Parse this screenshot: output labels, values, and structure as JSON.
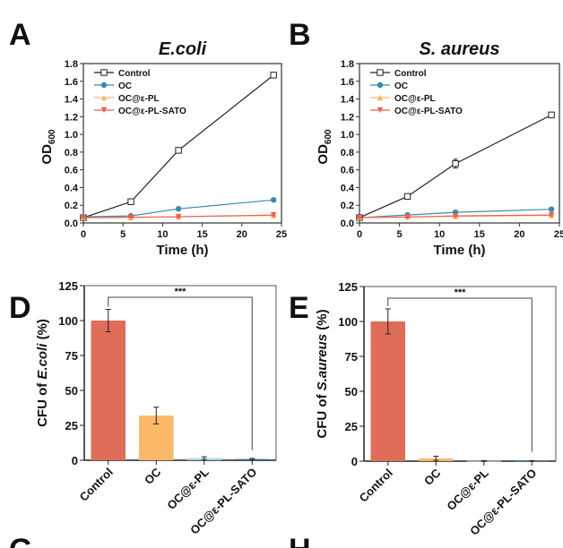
{
  "panel_labels": [
    "A",
    "B",
    "D",
    "E",
    "G",
    "H"
  ],
  "chart_data": [
    {
      "panel": "A",
      "type": "line",
      "title": "E.coli",
      "xlabel": "Time (h)",
      "ylabel": "OD",
      "ylabel_sub": "600",
      "xlim": [
        0,
        25
      ],
      "ylim": [
        0,
        1.8
      ],
      "xticks": [
        0,
        5,
        10,
        15,
        20,
        25
      ],
      "yticks": [
        0.0,
        0.2,
        0.4,
        0.6,
        0.8,
        1.0,
        1.2,
        1.4,
        1.6,
        1.8
      ],
      "legend": "top-left",
      "grid": false,
      "x": [
        0,
        6,
        12,
        24
      ],
      "series": [
        {
          "name": "Control",
          "color": "#222222",
          "marker": "open-square",
          "values": [
            0.06,
            0.24,
            0.82,
            1.67
          ],
          "errors": [
            0.01,
            0.03,
            0.02,
            0.01
          ]
        },
        {
          "name": "OC",
          "color": "#3b8aa8",
          "marker": "circle",
          "values": [
            0.07,
            0.08,
            0.16,
            0.26
          ],
          "errors": [
            0.01,
            0.01,
            0.01,
            0.015
          ]
        },
        {
          "name": "OC@ε-PL",
          "color": "#fdb86a",
          "marker": "triangle-up",
          "values": [
            0.06,
            0.06,
            0.07,
            0.085
          ],
          "errors": [
            0.005,
            0.005,
            0.005,
            0.005
          ]
        },
        {
          "name": "OC@ε-PL-SATO",
          "color": "#f0604f",
          "marker": "triangle-down",
          "values": [
            0.06,
            0.065,
            0.07,
            0.09
          ],
          "errors": [
            0.005,
            0.005,
            0.01,
            0.01
          ]
        }
      ]
    },
    {
      "panel": "B",
      "type": "line",
      "title": "S. aureus",
      "xlabel": "Time (h)",
      "ylabel": "OD",
      "ylabel_sub": "600",
      "xlim": [
        0,
        25
      ],
      "ylim": [
        0,
        1.8
      ],
      "xticks": [
        0,
        5,
        10,
        15,
        20,
        25
      ],
      "yticks": [
        0.0,
        0.2,
        0.4,
        0.6,
        0.8,
        1.0,
        1.2,
        1.4,
        1.6,
        1.8
      ],
      "legend": "top-left",
      "grid": false,
      "x": [
        0,
        6,
        12,
        24
      ],
      "series": [
        {
          "name": "Control",
          "color": "#222222",
          "marker": "open-square",
          "values": [
            0.06,
            0.3,
            0.67,
            1.22
          ],
          "errors": [
            0.01,
            0.025,
            0.05,
            0.02
          ]
        },
        {
          "name": "OC",
          "color": "#3b8aa8",
          "marker": "circle",
          "values": [
            0.06,
            0.09,
            0.12,
            0.155
          ],
          "errors": [
            0.005,
            0.005,
            0.005,
            0.005
          ]
        },
        {
          "name": "OC@ε-PL",
          "color": "#fdb86a",
          "marker": "triangle-up",
          "values": [
            0.06,
            0.07,
            0.075,
            0.085
          ],
          "errors": [
            0.005,
            0.005,
            0.005,
            0.005
          ]
        },
        {
          "name": "OC@ε-PL-SATO",
          "color": "#f0604f",
          "marker": "triangle-down",
          "values": [
            0.06,
            0.065,
            0.08,
            0.09
          ],
          "errors": [
            0.005,
            0.005,
            0.01,
            0.01
          ]
        }
      ]
    },
    {
      "panel": "D",
      "type": "bar",
      "ylabel_prefix": "CFU of ",
      "ylabel_italic": "E.coli",
      "ylabel_suffix": " (%)",
      "ylim": [
        0,
        125
      ],
      "yticks": [
        0,
        25,
        50,
        75,
        100,
        125
      ],
      "categories": [
        "Control",
        "OC",
        "OC@ε-PL",
        "OC@ε-PL-SATO"
      ],
      "values": [
        100,
        32,
        1.5,
        0.8
      ],
      "errors": [
        8,
        6,
        1,
        0.5
      ],
      "colors": [
        "#e06c5a",
        "#fdb86a",
        "#a9d5e2",
        "#2c5d8f"
      ],
      "significance": {
        "from": "Control",
        "to": "OC@ε-PL-SATO",
        "label": "***"
      }
    },
    {
      "panel": "E",
      "type": "bar",
      "ylabel_prefix": "CFU of ",
      "ylabel_italic": "S.aureus",
      "ylabel_suffix": " (%)",
      "ylim": [
        0,
        125
      ],
      "yticks": [
        0,
        25,
        50,
        75,
        100,
        125
      ],
      "categories": [
        "Control",
        "OC",
        "OC@ε-PL",
        "OC@ε-PL-SATO"
      ],
      "values": [
        100,
        2,
        0.2,
        0.2
      ],
      "errors": [
        9,
        1.5,
        0.2,
        0.2
      ],
      "colors": [
        "#e06c5a",
        "#fdb86a",
        "#a9d5e2",
        "#2c5d8f"
      ],
      "significance": {
        "from": "Control",
        "to": "OC@ε-PL-SATO",
        "label": "***"
      }
    }
  ]
}
